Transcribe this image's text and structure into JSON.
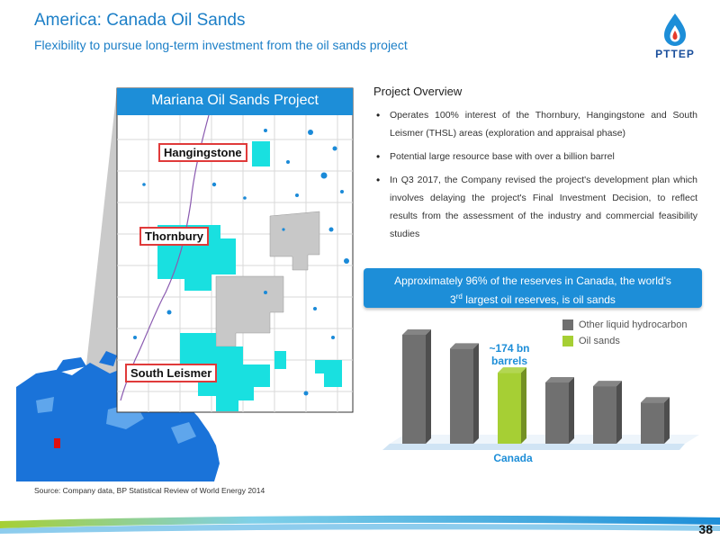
{
  "header": {
    "title": "America: Canada Oil Sands",
    "subtitle": "Flexibility to pursue long-term investment from the oil sands project"
  },
  "logo": {
    "text": "PTTEP",
    "icon": "pttep-flame-drop-logo"
  },
  "map": {
    "title": "Mariana Oil Sands Project",
    "labels": {
      "hangingstone": "Hangingstone",
      "thornbury": "Thornbury",
      "south_leismer": "South Leismer"
    },
    "colors": {
      "project_area": "#19e0e0",
      "other_area": "#c8c8c8",
      "water": "#1a8ad8",
      "grid": "#d9d9d9",
      "canada_map": "#1a73d9",
      "location_marker": "#e01010"
    }
  },
  "overview": {
    "heading": "Project Overview",
    "bullets": [
      "Operates 100% interest of the Thornbury, Hangingstone and South Leismer (THSL) areas (exploration and appraisal phase)",
      "Potential large resource base with over a billion barrel",
      "In Q3 2017, the Company revised the project's development plan which involves delaying the project's Final Investment Decision, to reflect results from the assessment of the industry and commercial feasibility studies"
    ]
  },
  "callout": {
    "line1": "Approximately 96% of the reserves in Canada, the world's",
    "line2_prefix": "3",
    "line2_sup": "rd",
    "line2_suffix": " largest oil reserves, is oil sands"
  },
  "chart_data": {
    "type": "bar",
    "categories": [
      "",
      "",
      "Canada",
      "",
      "",
      ""
    ],
    "series": [
      {
        "name": "Other liquid hydrocarbon",
        "color": "#707070",
        "values": [
          267,
          233,
          0,
          0,
          0,
          0
        ]
      },
      {
        "name": "Oil sands",
        "color": "#a6cf34",
        "values": [
          0,
          0,
          174,
          0,
          0,
          0
        ]
      }
    ],
    "single_values": [
      267,
      233,
      174,
      150,
      141,
      101
    ],
    "bar_colors": [
      "#707070",
      "#707070",
      "#a6cf34",
      "#707070",
      "#707070",
      "#707070"
    ],
    "annotation_lines": [
      "~174 bn",
      "barrels"
    ],
    "highlight_label": "Canada",
    "xlabel": "",
    "ylabel": "",
    "ylim": [
      0,
      300
    ],
    "grid": false,
    "legend_position": "top-right",
    "style": "3d-bars"
  },
  "source": "Source: Company data, BP Statistical Review of World Energy 2014",
  "page_number": "38",
  "accent_color": "#1d8ed8"
}
